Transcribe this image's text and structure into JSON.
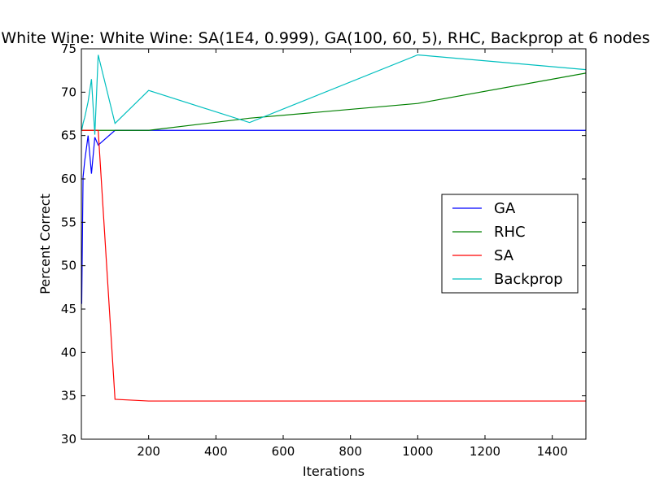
{
  "chart_data": {
    "type": "line",
    "title": "White Wine: White Wine: SA(1E4, 0.999), GA(100, 60, 5), RHC, Backprop at 6 nodes",
    "xlabel": "Iterations",
    "ylabel": "Percent Correct",
    "xlim": [
      0,
      1500
    ],
    "ylim": [
      30,
      75
    ],
    "xticks": [
      200,
      400,
      600,
      800,
      1000,
      1200,
      1400
    ],
    "yticks": [
      30,
      35,
      40,
      45,
      50,
      55,
      60,
      65,
      70,
      75
    ],
    "grid": false,
    "legend_position": "center-right",
    "series": [
      {
        "name": "GA",
        "color": "#0000ff",
        "x": [
          1,
          5,
          10,
          20,
          30,
          40,
          50,
          100,
          200,
          500,
          1000,
          1500
        ],
        "y": [
          45.6,
          60.2,
          62.1,
          65.0,
          60.6,
          64.8,
          63.9,
          65.6,
          65.6,
          65.6,
          65.6,
          65.6
        ]
      },
      {
        "name": "RHC",
        "color": "#008000",
        "x": [
          1,
          5,
          10,
          20,
          30,
          40,
          50,
          100,
          200,
          500,
          1000,
          1500
        ],
        "y": [
          65.6,
          65.6,
          65.6,
          65.6,
          65.6,
          65.6,
          65.6,
          65.6,
          65.6,
          67.0,
          68.7,
          72.2
        ]
      },
      {
        "name": "SA",
        "color": "#ff0000",
        "x": [
          1,
          5,
          10,
          20,
          30,
          40,
          50,
          100,
          200,
          500,
          1000,
          1500
        ],
        "y": [
          65.6,
          65.6,
          65.6,
          65.6,
          65.6,
          65.6,
          65.6,
          34.6,
          34.4,
          34.4,
          34.4,
          34.4
        ]
      },
      {
        "name": "Backprop",
        "color": "#00bfbf",
        "x": [
          1,
          5,
          10,
          20,
          30,
          40,
          50,
          100,
          200,
          500,
          1000,
          1500
        ],
        "y": [
          65.6,
          66.4,
          67.1,
          68.9,
          71.5,
          65.1,
          74.3,
          66.4,
          70.2,
          66.5,
          74.3,
          72.6
        ]
      }
    ]
  }
}
